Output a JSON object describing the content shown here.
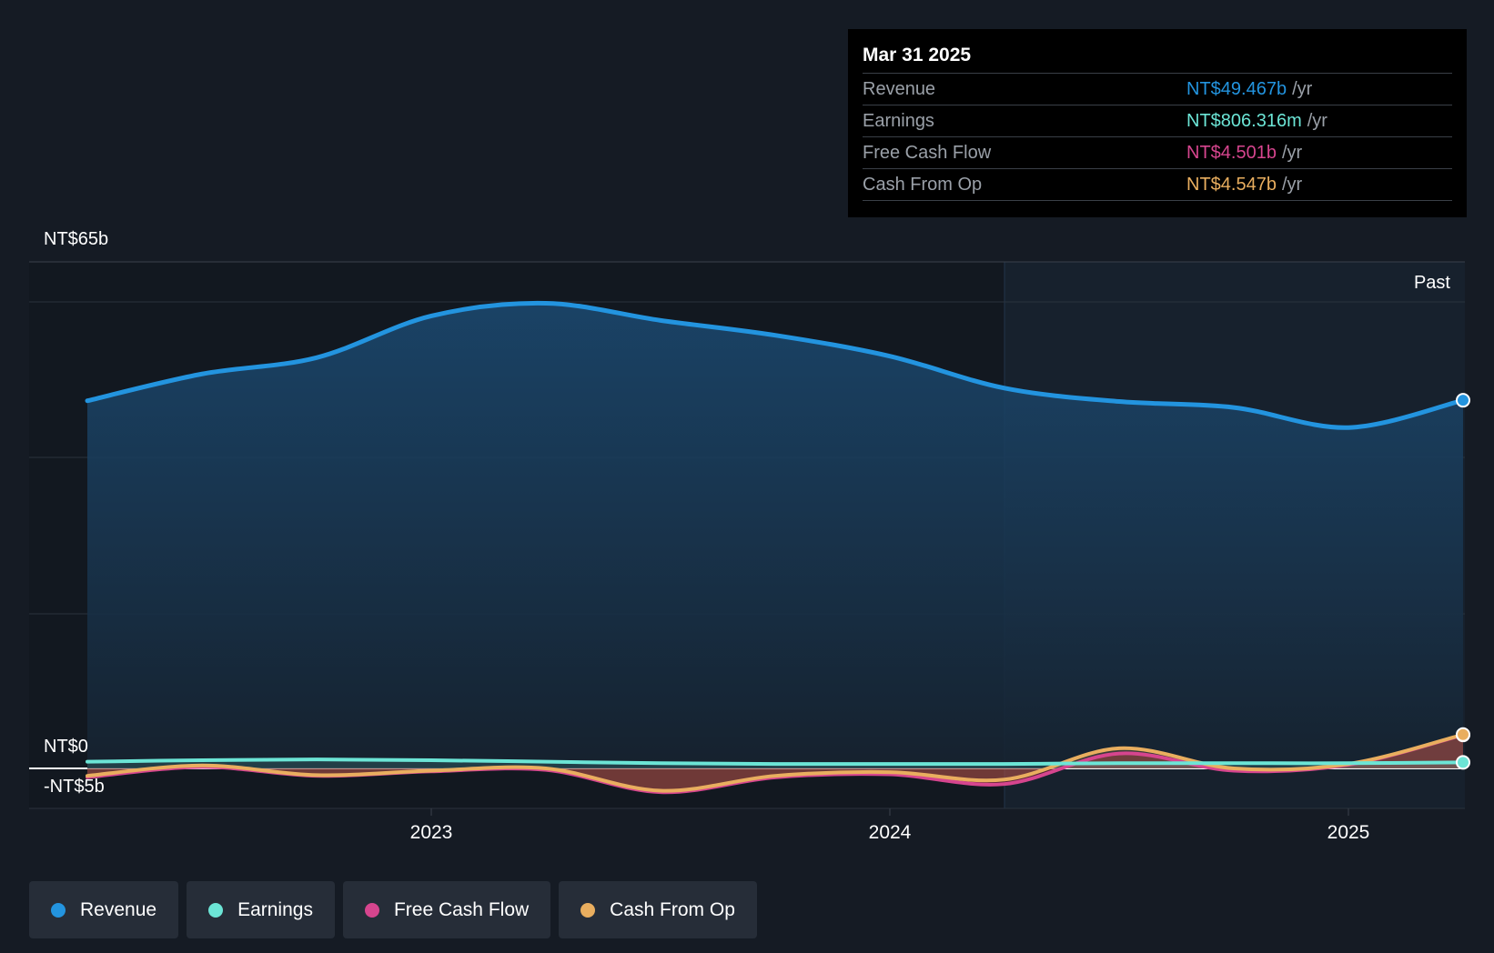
{
  "tooltip": {
    "date": "Mar 31 2025",
    "rows": [
      {
        "label": "Revenue",
        "value": "NT$49.467b",
        "unit": "/yr",
        "color": "#2394df"
      },
      {
        "label": "Earnings",
        "value": "NT$806.316m",
        "unit": "/yr",
        "color": "#6ce5d6"
      },
      {
        "label": "Free Cash Flow",
        "value": "NT$4.501b",
        "unit": "/yr",
        "color": "#d6458e"
      },
      {
        "label": "Cash From Op",
        "value": "NT$4.547b",
        "unit": "/yr",
        "color": "#e9ae5f"
      }
    ]
  },
  "past_label": "Past",
  "legend": [
    {
      "label": "Revenue",
      "color": "#2394df"
    },
    {
      "label": "Earnings",
      "color": "#6ce5d6"
    },
    {
      "label": "Free Cash Flow",
      "color": "#d6458e"
    },
    {
      "label": "Cash From Op",
      "color": "#e9ae5f"
    }
  ],
  "chart_data": {
    "type": "area",
    "title": "",
    "xlabel": "",
    "ylabel": "",
    "y_tick_labels": [
      "NT$65b",
      "NT$0",
      "-NT$5b"
    ],
    "x_tick_labels": [
      "2023",
      "2024",
      "2025"
    ],
    "ylim": [
      -5,
      65
    ],
    "xlim": [
      2022.28,
      2025.25
    ],
    "grid": true,
    "past_region_start": 2024.25,
    "series": [
      {
        "name": "Revenue",
        "color": "#2394df",
        "x": [
          2022.25,
          2022.5,
          2022.75,
          2023.0,
          2023.25,
          2023.5,
          2023.75,
          2024.0,
          2024.25,
          2024.5,
          2024.75,
          2025.0,
          2025.25
        ],
        "y": [
          49.4,
          53.0,
          55.2,
          60.8,
          62.5,
          60.2,
          58.2,
          55.4,
          51.1,
          49.3,
          48.5,
          45.8,
          49.467
        ]
      },
      {
        "name": "Earnings",
        "color": "#6ce5d6",
        "x": [
          2022.25,
          2022.5,
          2022.75,
          2023.0,
          2023.25,
          2023.5,
          2023.75,
          2024.0,
          2024.25,
          2024.5,
          2024.75,
          2025.0,
          2025.25
        ],
        "y": [
          0.9,
          1.1,
          1.2,
          1.1,
          0.9,
          0.7,
          0.6,
          0.6,
          0.6,
          0.7,
          0.7,
          0.7,
          0.806
        ]
      },
      {
        "name": "Free Cash Flow",
        "color": "#d6458e",
        "x": [
          2022.25,
          2022.5,
          2022.75,
          2023.0,
          2023.25,
          2023.5,
          2023.75,
          2024.0,
          2024.25,
          2024.5,
          2024.75,
          2025.0,
          2025.25
        ],
        "y": [
          -1.2,
          0.2,
          -1.0,
          -0.4,
          -0.2,
          -3.2,
          -1.2,
          -0.8,
          -2.1,
          2.0,
          -0.3,
          0.5,
          4.501
        ]
      },
      {
        "name": "Cash From Op",
        "color": "#e9ae5f",
        "x": [
          2022.25,
          2022.5,
          2022.75,
          2023.0,
          2023.25,
          2023.5,
          2023.75,
          2024.0,
          2024.25,
          2024.5,
          2024.75,
          2025.0,
          2025.25
        ],
        "y": [
          -1.0,
          0.4,
          -0.9,
          -0.3,
          0.0,
          -3.0,
          -1.0,
          -0.5,
          -1.5,
          2.7,
          0.0,
          0.6,
          4.547
        ]
      }
    ]
  }
}
